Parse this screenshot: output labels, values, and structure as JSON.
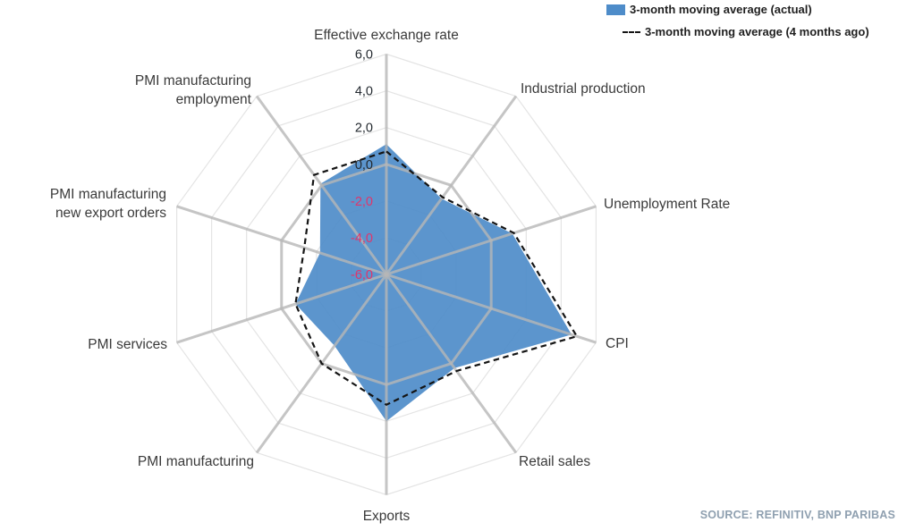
{
  "legend": {
    "items": [
      {
        "label": "3-month moving average (actual)",
        "marker": "filled-swatch",
        "color": "#4e8cc9"
      },
      {
        "label": "3-month moving average (4 months ago)",
        "marker": "dashed-line",
        "color": "#141414"
      }
    ]
  },
  "source": "SOURCE: REFINITIV, BNP PARIBAS",
  "colors": {
    "series_fill": "#4e8cc9",
    "dashed_line": "#141414",
    "axis_gray": "#b6b6b6",
    "light_grid": "#e4e4e4",
    "negative_tick": "#e1356b",
    "label_text": "#3a3a3a"
  },
  "chart_data": {
    "type": "radar",
    "title": "",
    "categories": [
      [
        "Effective exchange rate"
      ],
      [
        "Industrial production"
      ],
      [
        "Unemployment Rate"
      ],
      [
        "CPI"
      ],
      [
        "Retail sales"
      ],
      [
        "Exports"
      ],
      [
        "PMI manufacturing"
      ],
      [
        "PMI services"
      ],
      [
        "PMI manufacturing",
        "new export orders"
      ],
      [
        "PMI manufacturing",
        "employment"
      ]
    ],
    "series": [
      {
        "name": "3-month moving average (actual)",
        "style": "filled",
        "color": "#4e8cc9",
        "values": [
          1.1,
          -0.9,
          1.2,
          4.6,
          0.3,
          2.0,
          -1.2,
          -0.8,
          -2.2,
          0.1
        ]
      },
      {
        "name": "3-month moving average (4 months ago)",
        "style": "dashed",
        "color": "#141414",
        "values": [
          0.7,
          -0.8,
          1.3,
          4.9,
          0.5,
          1.1,
          0.0,
          -0.8,
          -1.3,
          0.7
        ]
      }
    ],
    "r_axis": {
      "min": -6,
      "max": 6,
      "tick_step": 2,
      "tick_values": [
        6,
        4,
        2,
        0,
        -2,
        -4,
        -6
      ],
      "ticks": [
        "6,0",
        "4,0",
        "2,0",
        "0,0",
        "-2,0",
        "-4,0",
        "-6,0"
      ],
      "tick_color": "#23292f",
      "negative_tick_color": "#e1356b"
    },
    "grid": {
      "rings_light": [
        6,
        4,
        2,
        -2,
        -4
      ],
      "ring_emphasized": 0
    },
    "legend_position": "top-right"
  }
}
